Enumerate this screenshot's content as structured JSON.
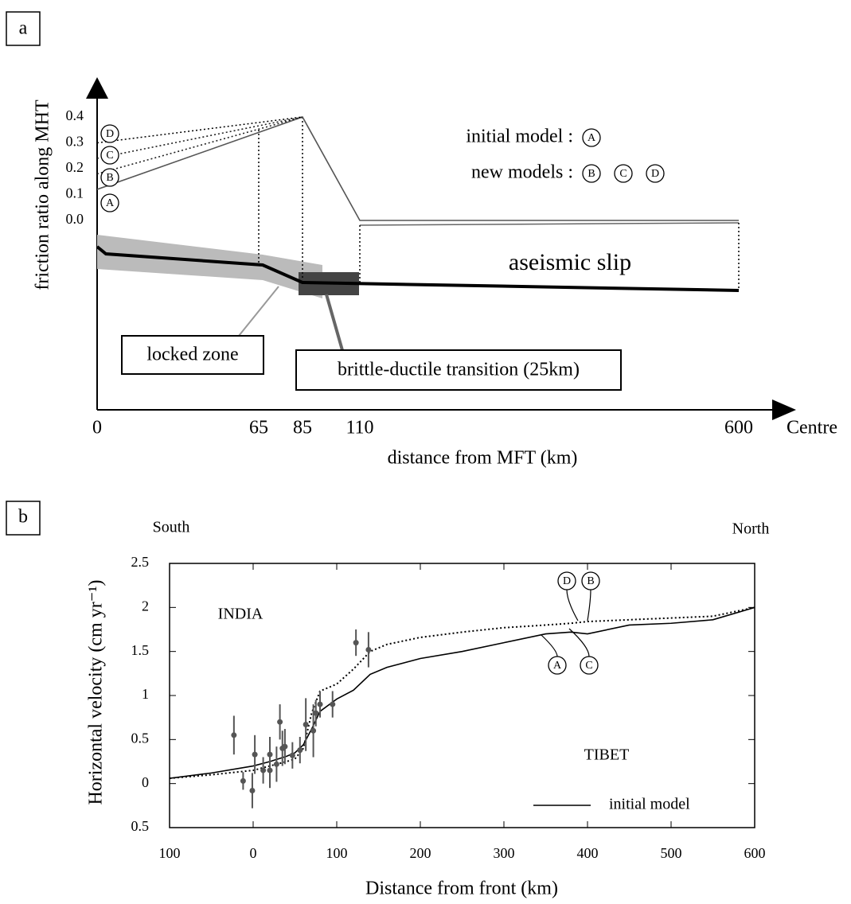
{
  "chart_data": [
    {
      "type": "line",
      "panel_label": "a",
      "xlabel": "distance from MFT (km)",
      "ylabel": "friction ratio along MHT",
      "x_end_label": "Centre",
      "x": [
        0,
        85,
        110,
        600
      ],
      "series": [
        {
          "name": "A",
          "color": "#555555",
          "style": "solid",
          "values": [
            0.12,
            0.4,
            0,
            0
          ]
        },
        {
          "name": "B",
          "color": "#222222",
          "style": "dotted",
          "values": [
            0.18,
            0.4,
            null,
            null
          ]
        },
        {
          "name": "C",
          "color": "#222222",
          "style": "dotted",
          "values": [
            0.24,
            0.4,
            null,
            null
          ]
        },
        {
          "name": "D",
          "color": "#000000",
          "style": "dotted",
          "values": [
            0.3,
            0.4,
            null,
            null
          ]
        }
      ],
      "xlim": [
        0,
        600
      ],
      "xticks": [
        0,
        65,
        85,
        110,
        600
      ],
      "ylim": [
        0,
        0.4
      ],
      "yticks": [
        {
          "value": 0,
          "label": "0.0"
        },
        0.1,
        0.2,
        0.3,
        0.4
      ],
      "legend_texts": [
        "initial model :",
        "new models :"
      ],
      "annotations": [
        "aseismic slip",
        "locked zone",
        "brittle-ductile transition (25km)"
      ]
    },
    {
      "type": "line",
      "panel_label": "b",
      "xlabel": "Distance from front (km)",
      "ylabel": "Horizontal velocity (cm yr⁻¹)",
      "x": [
        -100,
        -50,
        0,
        20,
        40,
        50,
        60,
        70,
        80,
        100,
        120,
        140,
        160,
        200,
        250,
        300,
        350,
        380,
        400,
        450,
        500,
        550,
        600
      ],
      "series": [
        {
          "name": "initial model",
          "color": "#000000",
          "style": "solid",
          "values": [
            0.06,
            0.12,
            0.2,
            0.25,
            0.31,
            0.35,
            0.44,
            0.62,
            0.82,
            0.96,
            1.06,
            1.24,
            1.32,
            1.42,
            1.5,
            1.6,
            1.7,
            1.72,
            1.7,
            1.8,
            1.82,
            1.86,
            2.0
          ]
        },
        {
          "color": "#000000",
          "style": "dotted",
          "values": [
            0.06,
            0.1,
            0.15,
            0.2,
            0.25,
            0.28,
            0.4,
            0.8,
            1.05,
            1.13,
            1.3,
            1.5,
            1.58,
            1.66,
            1.72,
            1.77,
            1.8,
            1.82,
            1.84,
            1.86,
            1.88,
            1.9,
            2.0
          ]
        },
        {
          "type": "scatter",
          "color": "#555555",
          "x": [
            -23,
            -12,
            -1,
            2,
            12,
            20,
            20,
            28,
            32,
            35,
            38,
            47,
            56,
            63,
            72,
            75,
            80,
            95,
            123,
            138
          ],
          "values": [
            0.55,
            0.03,
            -0.08,
            0.33,
            0.15,
            0.15,
            0.33,
            0.22,
            0.7,
            0.4,
            0.42,
            0.32,
            0.38,
            0.67,
            0.6,
            0.8,
            0.9,
            0.9,
            1.6,
            1.52
          ],
          "errors": [
            0.22,
            0.1,
            0.2,
            0.22,
            0.15,
            0.2,
            0.2,
            0.2,
            0.2,
            0.2,
            0.2,
            0.15,
            0.15,
            0.3,
            0.3,
            0.15,
            0.15,
            0.15,
            0.15,
            0.2
          ]
        }
      ],
      "xlim": [
        -100,
        600
      ],
      "xticks": [
        {
          "value": -100,
          "label": "100"
        },
        0,
        100,
        200,
        300,
        400,
        500,
        600
      ],
      "ylim": [
        -0.5,
        2.5
      ],
      "yticks": [
        {
          "value": -0.5,
          "label": "0.5"
        },
        0,
        0.5,
        1,
        1.5,
        2,
        2.5
      ],
      "annotations": [
        "South",
        "North",
        "INDIA",
        "TIBET"
      ],
      "curve_labels": [
        "D",
        "B",
        "A",
        "C"
      ],
      "legend": "lower right"
    }
  ]
}
